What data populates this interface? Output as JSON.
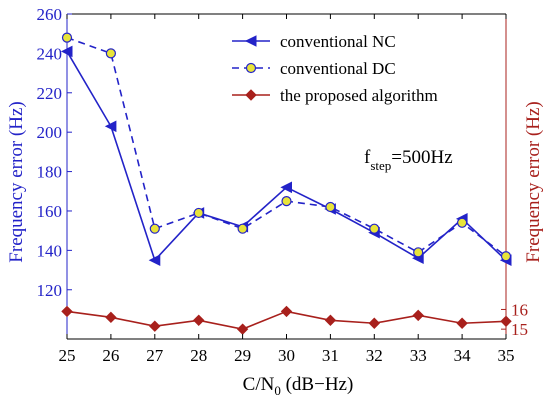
{
  "chart_data": {
    "type": "line",
    "xlabel": {
      "main": "C/N",
      "sub": "0",
      "rest": " (dB−Hz)"
    },
    "ylabel_left": "Frequency error (Hz)",
    "ylabel_right": "Frequency error (Hz)",
    "x": [
      25,
      26,
      27,
      28,
      29,
      30,
      31,
      32,
      33,
      34,
      35
    ],
    "x_ticks": [
      "25",
      "26",
      "27",
      "28",
      "29",
      "30",
      "31",
      "32",
      "33",
      "34",
      "35"
    ],
    "xlim": [
      25,
      35
    ],
    "y_left_lim": [
      95,
      260
    ],
    "y_left_ticks": [
      120,
      140,
      160,
      180,
      200,
      220,
      240,
      260
    ],
    "y_right_lim": [
      14.5,
      31.0
    ],
    "y_right_ticks": [
      15,
      16
    ],
    "annotation": {
      "main": "f",
      "sub": "step",
      "rest": "=500Hz"
    },
    "series": [
      {
        "name": "conventional NC",
        "axis": "left",
        "color": "#2323c8",
        "line_style": "solid",
        "marker": "left-triangle",
        "values": [
          241,
          203,
          135,
          159,
          152,
          172,
          161,
          149,
          136,
          156,
          135
        ]
      },
      {
        "name": "conventional DC",
        "axis": "left",
        "color": "#2323c8",
        "marker_fill": "#e8e43a",
        "line_style": "dashed",
        "marker": "circle",
        "values": [
          248,
          240,
          151,
          159,
          151,
          165,
          162,
          151,
          139,
          154,
          137
        ]
      },
      {
        "name": "the proposed algorithm",
        "axis": "right",
        "color": "#a8201c",
        "line_style": "solid",
        "marker": "diamond",
        "values": [
          15.9,
          15.6,
          15.15,
          15.45,
          15.0,
          15.9,
          15.45,
          15.3,
          15.7,
          15.3,
          15.4
        ]
      }
    ],
    "axis_colors": {
      "left": "#2323c8",
      "right": "#a8201c",
      "frame": "#000000"
    }
  }
}
